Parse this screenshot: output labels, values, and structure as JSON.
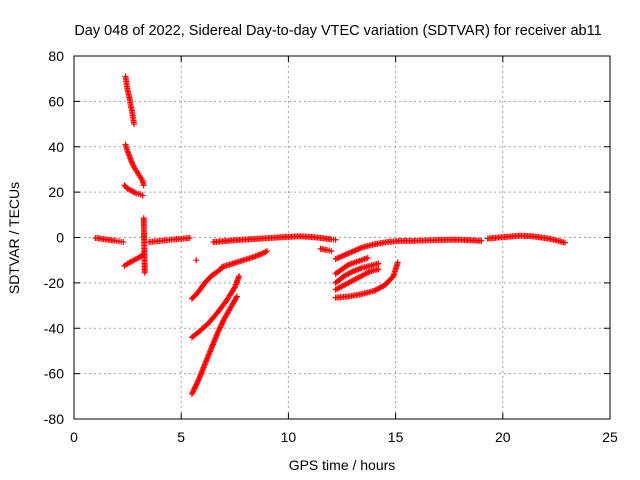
{
  "chart_data": {
    "type": "scatter",
    "title": "Day 048 of 2022, Sidereal Day-to-day VTEC variation (SDTVAR) for receiver ab11",
    "xlabel": "GPS time / hours",
    "ylabel": "SDTVAR / TECUs",
    "xlim": [
      0,
      25
    ],
    "ylim": [
      -80,
      80
    ],
    "xticks": [
      0,
      5,
      10,
      15,
      20,
      25
    ],
    "yticks": [
      -80,
      -60,
      -40,
      -20,
      0,
      20,
      40,
      60,
      80
    ],
    "grid": true,
    "marker": "+",
    "color": "#ff0000",
    "series": [
      {
        "x": [
          1.0,
          1.3,
          1.6,
          1.9,
          2.1,
          2.3
        ],
        "y": [
          -0.2,
          -0.6,
          -1.0,
          -1.4,
          -1.7,
          -2.0
        ]
      },
      {
        "x": [
          2.4,
          2.45,
          2.5,
          2.55,
          2.6,
          2.65,
          2.7,
          2.75,
          2.8
        ],
        "y": [
          71,
          68,
          65,
          63,
          61,
          58,
          56,
          53,
          50
        ]
      },
      {
        "x": [
          2.4,
          2.5,
          2.6,
          2.7,
          2.8,
          2.9,
          3.0,
          3.1,
          3.2,
          3.25
        ],
        "y": [
          41,
          38,
          35.5,
          33,
          31,
          29.5,
          28,
          26.5,
          25,
          23
        ]
      },
      {
        "x": [
          2.35,
          2.5,
          2.7,
          2.9,
          3.1,
          3.2
        ],
        "y": [
          23,
          21.5,
          20.5,
          19.5,
          19,
          18.5
        ]
      },
      {
        "x": [
          2.35,
          2.5,
          2.7,
          2.9,
          3.1,
          3.2
        ],
        "y": [
          -12.5,
          -11.5,
          -10.5,
          -9.5,
          -8.5,
          -7.5
        ]
      },
      {
        "x": [
          3.25,
          3.3
        ],
        "y": [
          8.5,
          -15.5
        ]
      },
      {
        "x": [
          3.5,
          3.9,
          4.3,
          4.7,
          5.1,
          5.4
        ],
        "y": [
          -2.0,
          -1.6,
          -1.2,
          -0.8,
          -0.5,
          -0.2
        ]
      },
      {
        "x": [
          5.7
        ],
        "y": [
          -10
        ]
      },
      {
        "x": [
          5.5,
          5.8,
          6.1,
          6.4,
          6.7,
          6.9
        ],
        "y": [
          -27,
          -24,
          -20,
          -17,
          -15,
          -13.5
        ]
      },
      {
        "x": [
          5.5,
          5.9,
          6.3,
          6.7,
          7.1,
          7.5,
          7.7
        ],
        "y": [
          -44,
          -41,
          -37.5,
          -33,
          -28,
          -22,
          -17
        ]
      },
      {
        "x": [
          5.5,
          5.8,
          6.1,
          6.4,
          6.7,
          7.0,
          7.3,
          7.6
        ],
        "y": [
          -69,
          -63,
          -56,
          -49,
          -42,
          -36,
          -31,
          -26
        ]
      },
      {
        "x": [
          6.5,
          7.0,
          7.5,
          8.0,
          8.5,
          9.0,
          9.5,
          10.0,
          10.5,
          11.0,
          11.5,
          12.0,
          12.2
        ],
        "y": [
          -2.0,
          -1.6,
          -1.2,
          -0.9,
          -0.6,
          -0.3,
          0.0,
          0.3,
          0.5,
          0.3,
          -0.2,
          -0.8,
          -1.0
        ]
      },
      {
        "x": [
          6.9,
          7.4,
          7.9,
          8.4,
          8.8,
          9.0
        ],
        "y": [
          -13,
          -11.5,
          -10,
          -8.5,
          -7,
          -6
        ]
      },
      {
        "x": [
          11.5,
          11.8,
          12.0
        ],
        "y": [
          -5,
          -5.5,
          -6
        ]
      },
      {
        "x": [
          12.2,
          12.8,
          13.4,
          14.0,
          14.6,
          15.2,
          15.8,
          16.4,
          17.0,
          17.5,
          18.0,
          18.5,
          19.0
        ],
        "y": [
          -9.5,
          -7,
          -4.5,
          -3,
          -2,
          -1.5,
          -1.5,
          -1.3,
          -1.1,
          -1.0,
          -1.0,
          -1.2,
          -1.5
        ]
      },
      {
        "x": [
          12.2,
          12.5,
          12.8,
          13.1,
          13.4,
          13.7
        ],
        "y": [
          -16,
          -14,
          -12,
          -11,
          -10,
          -9
        ]
      },
      {
        "x": [
          12.2,
          12.6,
          13.0,
          13.4,
          13.8,
          14.2
        ],
        "y": [
          -20,
          -17,
          -15,
          -13.5,
          -12.5,
          -11.5
        ]
      },
      {
        "x": [
          12.2,
          12.6,
          13.0,
          13.4,
          13.8,
          14.2
        ],
        "y": [
          -23,
          -21,
          -19,
          -17,
          -15,
          -14
        ]
      },
      {
        "x": [
          12.2,
          12.8,
          13.4,
          14.0,
          14.5,
          14.9,
          15.1
        ],
        "y": [
          -26.5,
          -26,
          -25,
          -23.5,
          -21,
          -17,
          -11
        ]
      },
      {
        "x": [
          19.3,
          19.8,
          20.3,
          20.8,
          21.3,
          21.8,
          22.3,
          22.6,
          22.9
        ],
        "y": [
          -0.5,
          0.0,
          0.4,
          0.8,
          0.6,
          0.0,
          -0.8,
          -1.5,
          -2.3
        ]
      }
    ]
  }
}
